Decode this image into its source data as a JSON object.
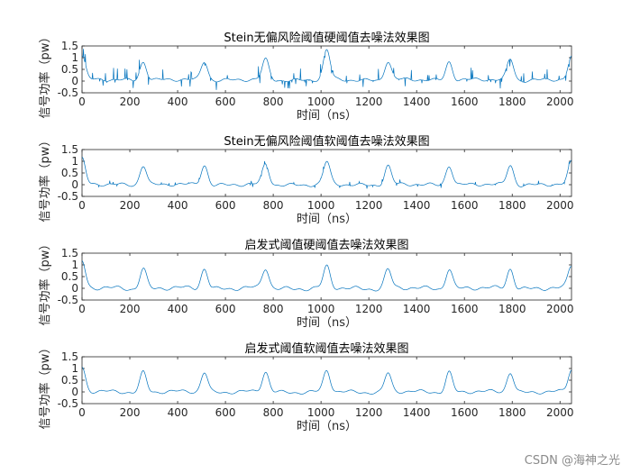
{
  "watermark": "CSDN @海神之光",
  "chart_data": [
    {
      "type": "line",
      "title": "Stein无偏风险阈值硬阈值去噪法效果图",
      "xlabel": "时间（ns）",
      "ylabel": "信号功率（pw）",
      "xlim": [
        0,
        2048
      ],
      "ylim": [
        -0.5,
        1.5
      ],
      "xticks": [
        0,
        200,
        400,
        600,
        800,
        1000,
        1200,
        1400,
        1600,
        1800,
        2000
      ],
      "yticks": [
        -0.5,
        0,
        0.5,
        1,
        1.5
      ],
      "noise_level": "high",
      "series": [
        {
          "color": "#0072BD",
          "peaks_x": [
            0,
            256,
            512,
            768,
            1024,
            1280,
            1536,
            1792,
            2048
          ],
          "peaks_y": [
            1.05,
            0.85,
            0.85,
            0.9,
            1.3,
            0.85,
            0.85,
            0.95,
            1.0
          ],
          "baseline_y": 0.05,
          "spike_range": [
            -0.45,
            0.5
          ]
        }
      ]
    },
    {
      "type": "line",
      "title": "Stein无偏风险阈值软阈值去噪法效果图",
      "xlabel": "时间（ns）",
      "ylabel": "信号功率（pw）",
      "xlim": [
        0,
        2048
      ],
      "ylim": [
        -0.5,
        1.5
      ],
      "xticks": [
        0,
        200,
        400,
        600,
        800,
        1000,
        1200,
        1400,
        1600,
        1800,
        2000
      ],
      "yticks": [
        -0.5,
        0,
        0.5,
        1,
        1.5
      ],
      "noise_level": "medium",
      "series": [
        {
          "color": "#0072BD",
          "peaks_x": [
            0,
            256,
            512,
            768,
            1024,
            1280,
            1536,
            1792,
            2048
          ],
          "peaks_y": [
            1.1,
            0.85,
            0.85,
            0.85,
            0.95,
            0.8,
            0.85,
            0.85,
            0.95
          ],
          "baseline_y": 0.0,
          "spike_range": [
            -0.15,
            0.15
          ]
        }
      ]
    },
    {
      "type": "line",
      "title": "启发式阈值硬阈值去噪法效果图",
      "xlabel": "时间（ns）",
      "ylabel": "信号功率（pw）",
      "xlim": [
        0,
        2048
      ],
      "ylim": [
        -0.5,
        1.5
      ],
      "xticks": [
        0,
        200,
        400,
        600,
        800,
        1000,
        1200,
        1400,
        1600,
        1800,
        2000
      ],
      "yticks": [
        -0.5,
        0,
        0.5,
        1,
        1.5
      ],
      "noise_level": "low",
      "series": [
        {
          "color": "#0072BD",
          "peaks_x": [
            0,
            256,
            512,
            768,
            1024,
            1280,
            1536,
            1792,
            2048
          ],
          "peaks_y": [
            1.15,
            0.85,
            0.85,
            0.85,
            0.9,
            0.8,
            0.85,
            0.85,
            0.95
          ],
          "baseline_y": 0.0,
          "spike_range": [
            -0.08,
            0.08
          ]
        }
      ]
    },
    {
      "type": "line",
      "title": "启发式阈值软阈值去噪法效果图",
      "xlabel": "时间（ns）",
      "ylabel": "信号功率（pw）",
      "xlim": [
        0,
        2048
      ],
      "ylim": [
        -0.5,
        1.5
      ],
      "xticks": [
        0,
        200,
        400,
        600,
        800,
        1000,
        1200,
        1400,
        1600,
        1800,
        2000
      ],
      "yticks": [
        -0.5,
        0,
        0.5,
        1,
        1.5
      ],
      "noise_level": "smooth",
      "series": [
        {
          "color": "#0072BD",
          "peaks_x": [
            0,
            256,
            512,
            768,
            1024,
            1280,
            1536,
            1792,
            2048
          ],
          "peaks_y": [
            1.05,
            0.85,
            0.85,
            0.85,
            0.9,
            0.8,
            0.85,
            0.85,
            0.95
          ],
          "baseline_y": 0.0,
          "spike_range": [
            -0.05,
            0.05
          ]
        }
      ]
    }
  ]
}
